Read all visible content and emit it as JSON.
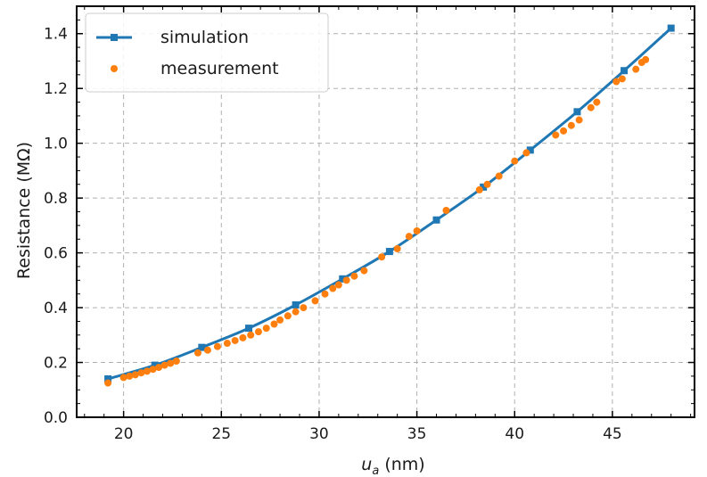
{
  "chart_data": {
    "type": "line",
    "xlabel_main": "u",
    "xlabel_sub": "a",
    "xlabel_unit": " (nm)",
    "ylabel": "Resistance (MΩ)",
    "xlim": [
      17.6,
      49.2
    ],
    "ylim": [
      0.0,
      1.5
    ],
    "grid": true,
    "legend_position": "top-left",
    "x_ticks": [
      20,
      25,
      30,
      35,
      40,
      45
    ],
    "x_tick_labels": [
      "20",
      "25",
      "30",
      "35",
      "40",
      "45"
    ],
    "y_ticks": [
      0.0,
      0.2,
      0.4,
      0.6,
      0.8,
      1.0,
      1.2,
      1.4
    ],
    "y_tick_labels": [
      "0.0",
      "0.2",
      "0.4",
      "0.6",
      "0.8",
      "1.0",
      "1.2",
      "1.4"
    ],
    "series": [
      {
        "name": "simulation",
        "style": "line-square",
        "color": "#1f77b4",
        "x": [
          19.2,
          21.6,
          24.0,
          26.4,
          28.8,
          31.2,
          33.6,
          36.0,
          38.4,
          40.8,
          43.2,
          45.6,
          48.0
        ],
        "y": [
          0.14,
          0.19,
          0.255,
          0.325,
          0.41,
          0.505,
          0.605,
          0.72,
          0.84,
          0.975,
          1.115,
          1.265,
          1.42
        ]
      },
      {
        "name": "measurement",
        "style": "scatter",
        "color": "#ff7f0e",
        "x": [
          19.2,
          20.0,
          20.3,
          20.6,
          20.9,
          21.2,
          21.5,
          21.8,
          22.1,
          22.4,
          22.7,
          23.8,
          24.3,
          24.8,
          25.3,
          25.7,
          26.1,
          26.5,
          26.9,
          27.3,
          27.7,
          28.0,
          28.4,
          28.8,
          29.2,
          29.8,
          30.3,
          30.7,
          31.0,
          31.4,
          31.8,
          32.3,
          33.2,
          34.0,
          34.6,
          35.0,
          36.5,
          38.2,
          38.6,
          39.2,
          40.0,
          40.6,
          42.1,
          42.5,
          42.9,
          43.3,
          43.9,
          44.2,
          45.2,
          45.5,
          46.2,
          46.5,
          46.7
        ],
        "y": [
          0.125,
          0.145,
          0.15,
          0.155,
          0.162,
          0.168,
          0.175,
          0.182,
          0.19,
          0.197,
          0.205,
          0.235,
          0.245,
          0.258,
          0.27,
          0.28,
          0.29,
          0.3,
          0.312,
          0.325,
          0.34,
          0.355,
          0.37,
          0.385,
          0.4,
          0.425,
          0.45,
          0.47,
          0.483,
          0.5,
          0.515,
          0.535,
          0.585,
          0.615,
          0.66,
          0.68,
          0.755,
          0.83,
          0.85,
          0.88,
          0.935,
          0.965,
          1.03,
          1.045,
          1.065,
          1.085,
          1.13,
          1.15,
          1.225,
          1.235,
          1.27,
          1.295,
          1.305
        ]
      }
    ]
  }
}
